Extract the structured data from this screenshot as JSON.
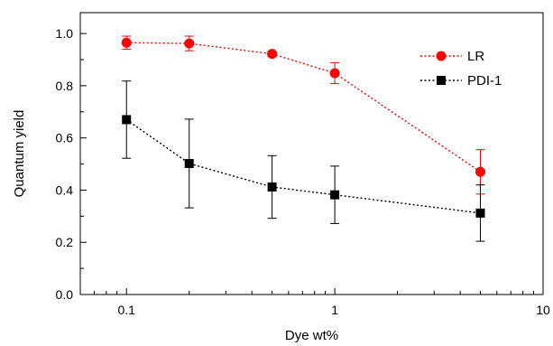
{
  "chart_data": {
    "type": "scatter",
    "xlabel": "Dye wt%",
    "ylabel": "Quantum yield",
    "xscale": "log",
    "xlim": [
      0.06,
      10
    ],
    "ylim": [
      0.0,
      1.08
    ],
    "xticks": [
      {
        "value": 0.1,
        "label": "0.1"
      },
      {
        "value": 1,
        "label": "1"
      },
      {
        "value": 10,
        "label": "10"
      }
    ],
    "yticks": [
      {
        "value": 0.0,
        "label": "0.0"
      },
      {
        "value": 0.2,
        "label": "0.2"
      },
      {
        "value": 0.4,
        "label": "0.4"
      },
      {
        "value": 0.6,
        "label": "0.6"
      },
      {
        "value": 0.8,
        "label": "0.8"
      },
      {
        "value": 1.0,
        "label": "1.0"
      }
    ],
    "grid": false,
    "legend_position": "top-right",
    "series": [
      {
        "name": "LR",
        "color": "#ff0000",
        "marker": "circle",
        "line_style": "dotted",
        "x": [
          0.1,
          0.2,
          0.5,
          1,
          5
        ],
        "y": [
          0.965,
          0.962,
          0.922,
          0.848,
          0.47
        ],
        "err": [
          0.025,
          0.028,
          0.01,
          0.04,
          0.085
        ]
      },
      {
        "name": "PDI-1",
        "color": "#000000",
        "marker": "square",
        "line_style": "dotted",
        "x": [
          0.1,
          0.2,
          0.5,
          1,
          5
        ],
        "y": [
          0.67,
          0.502,
          0.412,
          0.382,
          0.312
        ],
        "err": [
          0.148,
          0.17,
          0.12,
          0.11,
          0.108
        ]
      }
    ]
  }
}
